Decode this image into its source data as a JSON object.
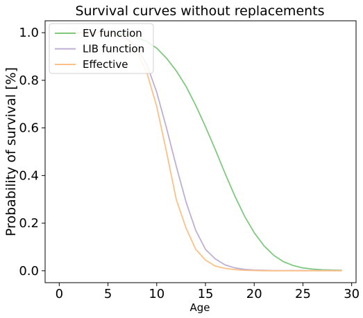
{
  "chart_data": {
    "type": "line",
    "title": "Survival curves without replacements",
    "xlabel": "Age",
    "ylabel": "Probability of survival [%]",
    "xlim": [
      -1.45,
      30.45
    ],
    "ylim": [
      -0.05,
      1.05
    ],
    "xticks": [
      0,
      5,
      10,
      15,
      20,
      25,
      30
    ],
    "yticks": [
      0.0,
      0.2,
      0.4,
      0.6,
      0.8,
      1.0
    ],
    "xtick_labels": [
      "0",
      "5",
      "10",
      "15",
      "20",
      "25",
      "30"
    ],
    "ytick_labels": [
      "0.0",
      "0.2",
      "0.4",
      "0.6",
      "0.8",
      "1.0"
    ],
    "grid": false,
    "legend_position": "top-left",
    "x": [
      0,
      1,
      2,
      3,
      4,
      5,
      6,
      7,
      8,
      9,
      10,
      11,
      12,
      13,
      14,
      15,
      16,
      17,
      18,
      19,
      20,
      21,
      22,
      23,
      24,
      25,
      26,
      27,
      28,
      29
    ],
    "series": [
      {
        "name": "EV function",
        "color": "#7fc97f",
        "values": [
          1.0,
          1.0,
          1.0,
          1.0,
          1.0,
          0.999,
          0.997,
          0.992,
          0.98,
          0.962,
          0.935,
          0.893,
          0.84,
          0.775,
          0.695,
          0.605,
          0.51,
          0.41,
          0.315,
          0.23,
          0.16,
          0.105,
          0.065,
          0.038,
          0.022,
          0.012,
          0.007,
          0.004,
          0.003,
          0.002
        ]
      },
      {
        "name": "LIB function",
        "color": "#beaed4",
        "values": [
          1.0,
          1.0,
          1.0,
          1.0,
          1.0,
          0.998,
          0.993,
          0.975,
          0.935,
          0.865,
          0.75,
          0.6,
          0.44,
          0.29,
          0.17,
          0.09,
          0.05,
          0.025,
          0.012,
          0.006,
          0.003,
          0.002,
          0.001,
          0.001,
          0.001,
          0.001,
          0.001,
          0.001,
          0.001,
          0.001
        ]
      },
      {
        "name": "Effective",
        "color": "#fdc086",
        "values": [
          1.0,
          1.0,
          1.0,
          1.0,
          1.0,
          0.998,
          0.992,
          0.97,
          0.92,
          0.83,
          0.69,
          0.5,
          0.3,
          0.18,
          0.09,
          0.045,
          0.02,
          0.01,
          0.005,
          0.002,
          0.001,
          0.0,
          0.0,
          0.0,
          0.0,
          0.0,
          0.0,
          0.0,
          0.0,
          0.0
        ]
      }
    ]
  }
}
